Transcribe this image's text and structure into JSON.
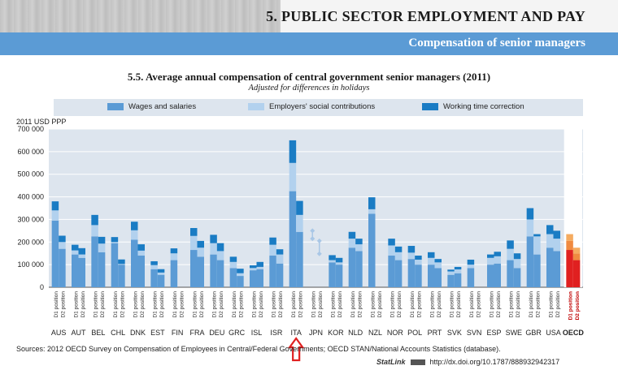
{
  "header": {
    "section_title": "5. PUBLIC SECTOR EMPLOYMENT AND PAY",
    "section_subtitle": "Compensation of senior managers"
  },
  "colors": {
    "wages": "#5b9bd5",
    "social": "#b2d1ee",
    "time": "#1a7cc4",
    "oecd_wages": "#e02020",
    "oecd_social": "#f08a40",
    "oecd_time": "#f5ab60",
    "jpn_marker": "#a9c7e6",
    "arrow": "#e02020"
  },
  "chart_data": {
    "type": "bar",
    "stacked": true,
    "title": "5.5.  Average annual compensation of central government senior managers (2011)",
    "subtitle": "Adjusted for differences in holidays",
    "ylabel": "2011 USD PPP",
    "ylim": [
      0,
      700000
    ],
    "yticks": [
      0,
      100000,
      200000,
      300000,
      400000,
      500000,
      600000,
      700000
    ],
    "ytick_labels": [
      "0",
      "100 000",
      "200 000",
      "300 000",
      "400 000",
      "500 000",
      "600 000",
      "700 000"
    ],
    "legend": [
      "Wages and salaries",
      "Employers' social contributions",
      "Working time correction"
    ],
    "position_labels": [
      "D1 position",
      "D2 position"
    ],
    "groups": [
      {
        "country": "AUS",
        "bars": [
          {
            "position": "D1",
            "wages": 295000,
            "social": 45000,
            "time": 40000
          },
          {
            "position": "D2",
            "wages": 170000,
            "social": 30000,
            "time": 28000
          }
        ]
      },
      {
        "country": "AUT",
        "bars": [
          {
            "position": "D1",
            "wages": 145000,
            "social": 18000,
            "time": 25000
          },
          {
            "position": "D2",
            "wages": 130000,
            "social": 15000,
            "time": 28000
          }
        ]
      },
      {
        "country": "BEL",
        "bars": [
          {
            "position": "D1",
            "wages": 225000,
            "social": 50000,
            "time": 45000
          },
          {
            "position": "D2",
            "wages": 155000,
            "social": 38000,
            "time": 30000
          }
        ]
      },
      {
        "country": "CHL",
        "bars": [
          {
            "position": "D1",
            "wages": 195000,
            "social": 5000,
            "time": 22000
          },
          {
            "position": "D2",
            "wages": 100000,
            "social": 3000,
            "time": 20000
          }
        ]
      },
      {
        "country": "DNK",
        "bars": [
          {
            "position": "D1",
            "wages": 210000,
            "social": 42000,
            "time": 38000
          },
          {
            "position": "D2",
            "wages": 140000,
            "social": 22000,
            "time": 28000
          }
        ]
      },
      {
        "country": "EST",
        "bars": [
          {
            "position": "D1",
            "wages": 80000,
            "social": 18000,
            "time": 17000
          },
          {
            "position": "D2",
            "wages": 55000,
            "social": 10000,
            "time": 15000
          }
        ]
      },
      {
        "country": "FIN",
        "bars": [
          {
            "position": "D1",
            "wages": 120000,
            "social": 30000,
            "time": 22000
          },
          {
            "position": "D2",
            "wages": 0,
            "social": 0,
            "time": 0
          }
        ]
      },
      {
        "country": "FRA",
        "bars": [
          {
            "position": "D1",
            "wages": 165000,
            "social": 62000,
            "time": 35000
          },
          {
            "position": "D2",
            "wages": 135000,
            "social": 40000,
            "time": 30000
          }
        ]
      },
      {
        "country": "DEU",
        "bars": [
          {
            "position": "D1",
            "wages": 145000,
            "social": 50000,
            "time": 37000
          },
          {
            "position": "D2",
            "wages": 120000,
            "social": 40000,
            "time": 35000
          }
        ]
      },
      {
        "country": "GRC",
        "bars": [
          {
            "position": "D1",
            "wages": 85000,
            "social": 27000,
            "time": 23000
          },
          {
            "position": "D2",
            "wages": 50000,
            "social": 12000,
            "time": 20000
          }
        ]
      },
      {
        "country": "ISL",
        "bars": [
          {
            "position": "D1",
            "wages": 75000,
            "social": 10000,
            "time": 12000
          },
          {
            "position": "D2",
            "wages": 80000,
            "social": 10000,
            "time": 22000
          }
        ]
      },
      {
        "country": "ISR",
        "bars": [
          {
            "position": "D1",
            "wages": 140000,
            "social": 48000,
            "time": 32000
          },
          {
            "position": "D2",
            "wages": 105000,
            "social": 40000,
            "time": 23000
          }
        ]
      },
      {
        "country": "ITA",
        "bars": [
          {
            "position": "D1",
            "wages": 425000,
            "social": 125000,
            "time": 100000
          },
          {
            "position": "D2",
            "wages": 245000,
            "social": 75000,
            "time": 62000
          }
        ]
      },
      {
        "country": "JPN",
        "bars": [
          {
            "position": "D1",
            "wages": 0,
            "social": 0,
            "time": 0
          },
          {
            "position": "D2",
            "wages": 0,
            "social": 0,
            "time": 0
          }
        ],
        "markers": [
          {
            "position": "D1",
            "low": 215000,
            "high": 250000
          },
          {
            "position": "D2",
            "low": 148000,
            "high": 205000
          }
        ]
      },
      {
        "country": "KOR",
        "bars": [
          {
            "position": "D1",
            "wages": 110000,
            "social": 10000,
            "time": 22000
          },
          {
            "position": "D2",
            "wages": 100000,
            "social": 10000,
            "time": 20000
          }
        ]
      },
      {
        "country": "NLD",
        "bars": [
          {
            "position": "D1",
            "wages": 175000,
            "social": 40000,
            "time": 30000
          },
          {
            "position": "D2",
            "wages": 160000,
            "social": 30000,
            "time": 25000
          }
        ]
      },
      {
        "country": "NZL",
        "bars": [
          {
            "position": "D1",
            "wages": 325000,
            "social": 20000,
            "time": 53000
          },
          {
            "position": "D2",
            "wages": 0,
            "social": 0,
            "time": 0
          }
        ]
      },
      {
        "country": "NOR",
        "bars": [
          {
            "position": "D1",
            "wages": 140000,
            "social": 45000,
            "time": 30000
          },
          {
            "position": "D2",
            "wages": 120000,
            "social": 35000,
            "time": 25000
          }
        ]
      },
      {
        "country": "POL",
        "bars": [
          {
            "position": "D1",
            "wages": 125000,
            "social": 28000,
            "time": 30000
          },
          {
            "position": "D2",
            "wages": 100000,
            "social": 22000,
            "time": 18000
          }
        ]
      },
      {
        "country": "PRT",
        "bars": [
          {
            "position": "D1",
            "wages": 100000,
            "social": 30000,
            "time": 25000
          },
          {
            "position": "D2",
            "wages": 85000,
            "social": 25000,
            "time": 15000
          }
        ]
      },
      {
        "country": "SVK",
        "bars": [
          {
            "position": "D1",
            "wages": 55000,
            "social": 15000,
            "time": 8000
          },
          {
            "position": "D2",
            "wages": 62000,
            "social": 17000,
            "time": 11000
          }
        ]
      },
      {
        "country": "SVN",
        "bars": [
          {
            "position": "D1",
            "wages": 85000,
            "social": 15000,
            "time": 22000
          },
          {
            "position": "D2",
            "wages": 0,
            "social": 0,
            "time": 0
          }
        ]
      },
      {
        "country": "ESP",
        "bars": [
          {
            "position": "D1",
            "wages": 100000,
            "social": 30000,
            "time": 15000
          },
          {
            "position": "D2",
            "wages": 105000,
            "social": 32000,
            "time": 20000
          }
        ]
      },
      {
        "country": "SWE",
        "bars": [
          {
            "position": "D1",
            "wages": 120000,
            "social": 50000,
            "time": 37000
          },
          {
            "position": "D2",
            "wages": 85000,
            "social": 40000,
            "time": 25000
          }
        ]
      },
      {
        "country": "GBR",
        "bars": [
          {
            "position": "D1",
            "wages": 225000,
            "social": 75000,
            "time": 50000
          },
          {
            "position": "D2",
            "wages": 145000,
            "social": 80000,
            "time": 10000
          }
        ]
      },
      {
        "country": "USA",
        "bars": [
          {
            "position": "D1",
            "wages": 175000,
            "social": 60000,
            "time": 40000
          },
          {
            "position": "D2",
            "wages": 160000,
            "social": 55000,
            "time": 35000
          }
        ]
      },
      {
        "country": "OECD",
        "highlight": true,
        "bars": [
          {
            "position": "D1",
            "wages": 165000,
            "social": 40000,
            "time": 30000
          },
          {
            "position": "D2",
            "wages": 120000,
            "social": 30000,
            "time": 25000
          }
        ]
      }
    ]
  },
  "footer": {
    "sources": "Sources:  2012 OECD Survey on Compensation of Employees in Central/Federal Governments; OECD STAN/National Accounts Statistics (database).",
    "statlink_label": "StatLink",
    "statlink_url": "http://dx.doi.org/10.1787/888932942317"
  }
}
